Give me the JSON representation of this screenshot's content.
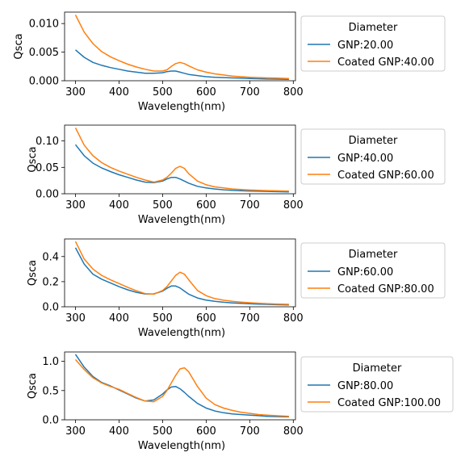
{
  "colors": {
    "series_a": "#1f77b4",
    "series_b": "#ff7f0e",
    "axis": "#000000",
    "background": "#ffffff"
  },
  "chart_data": [
    {
      "type": "line",
      "xlabel": "Wavelength(nm)",
      "ylabel": "Qsca",
      "xlim": [
        275,
        805
      ],
      "ylim": [
        0,
        0.012
      ],
      "x_ticks": [
        300,
        400,
        500,
        600,
        700,
        800
      ],
      "x_tick_labels": [
        "300",
        "400",
        "500",
        "600",
        "700",
        "800"
      ],
      "y_ticks": [
        0,
        0.005,
        0.01
      ],
      "y_tick_labels": [
        "0.000",
        "0.005",
        "0.010"
      ],
      "grid": false,
      "legend": {
        "title": "Diameter",
        "placement": "outside-right"
      },
      "x": [
        300,
        320,
        340,
        360,
        380,
        400,
        420,
        440,
        460,
        480,
        500,
        510,
        520,
        530,
        540,
        550,
        560,
        580,
        600,
        620,
        640,
        660,
        680,
        700,
        720,
        740,
        760,
        790
      ],
      "series": [
        {
          "name": "GNP:20.00",
          "values": [
            0.0054,
            0.0041,
            0.0032,
            0.0027,
            0.0023,
            0.002,
            0.0017,
            0.0015,
            0.0013,
            0.0013,
            0.0014,
            0.0016,
            0.0017,
            0.0017,
            0.0015,
            0.0013,
            0.0011,
            0.0009,
            0.0007,
            0.0006,
            0.00055,
            0.0005,
            0.00045,
            0.0004,
            0.00035,
            0.0003,
            0.00028,
            0.00025
          ]
        },
        {
          "name": "Coated GNP:40.00",
          "values": [
            0.0115,
            0.0085,
            0.0065,
            0.0051,
            0.0042,
            0.0035,
            0.0029,
            0.0024,
            0.002,
            0.0017,
            0.0017,
            0.0019,
            0.0025,
            0.003,
            0.0032,
            0.003,
            0.0026,
            0.0019,
            0.0015,
            0.0012,
            0.001,
            0.0008,
            0.0007,
            0.0006,
            0.00055,
            0.0005,
            0.00045,
            0.0004
          ]
        }
      ]
    },
    {
      "type": "line",
      "xlabel": "Wavelength(nm)",
      "ylabel": "Qsca",
      "xlim": [
        275,
        805
      ],
      "ylim": [
        0,
        0.13
      ],
      "x_ticks": [
        300,
        400,
        500,
        600,
        700,
        800
      ],
      "x_tick_labels": [
        "300",
        "400",
        "500",
        "600",
        "700",
        "800"
      ],
      "y_ticks": [
        0,
        0.05,
        0.1
      ],
      "y_tick_labels": [
        "0.00",
        "0.05",
        "0.10"
      ],
      "grid": false,
      "legend": {
        "title": "Diameter",
        "placement": "outside-right"
      },
      "x": [
        300,
        320,
        340,
        360,
        380,
        400,
        420,
        440,
        460,
        480,
        500,
        510,
        520,
        530,
        540,
        550,
        560,
        580,
        600,
        620,
        640,
        660,
        680,
        700,
        720,
        740,
        760,
        790
      ],
      "series": [
        {
          "name": "GNP:40.00",
          "values": [
            0.093,
            0.072,
            0.058,
            0.049,
            0.042,
            0.036,
            0.031,
            0.026,
            0.022,
            0.021,
            0.024,
            0.028,
            0.031,
            0.031,
            0.028,
            0.024,
            0.02,
            0.014,
            0.011,
            0.009,
            0.0075,
            0.0065,
            0.0058,
            0.0052,
            0.0048,
            0.0044,
            0.004,
            0.0035
          ]
        },
        {
          "name": "Coated GNP:60.00",
          "values": [
            0.125,
            0.092,
            0.072,
            0.059,
            0.05,
            0.043,
            0.037,
            0.031,
            0.026,
            0.022,
            0.026,
            0.031,
            0.039,
            0.048,
            0.052,
            0.048,
            0.038,
            0.024,
            0.017,
            0.013,
            0.011,
            0.009,
            0.008,
            0.007,
            0.0065,
            0.006,
            0.0055,
            0.005
          ]
        }
      ]
    },
    {
      "type": "line",
      "xlabel": "Wavelength(nm)",
      "ylabel": "Qsca",
      "xlim": [
        275,
        805
      ],
      "ylim": [
        0,
        0.54
      ],
      "x_ticks": [
        300,
        400,
        500,
        600,
        700,
        800
      ],
      "x_tick_labels": [
        "300",
        "400",
        "500",
        "600",
        "700",
        "800"
      ],
      "y_ticks": [
        0,
        0.2,
        0.4
      ],
      "y_tick_labels": [
        "0.0",
        "0.2",
        "0.4"
      ],
      "grid": false,
      "legend": {
        "title": "Diameter",
        "placement": "outside-right"
      },
      "x": [
        300,
        320,
        340,
        360,
        380,
        400,
        420,
        440,
        460,
        480,
        500,
        510,
        520,
        530,
        540,
        550,
        560,
        580,
        600,
        620,
        640,
        660,
        680,
        700,
        720,
        740,
        760,
        790
      ],
      "series": [
        {
          "name": "GNP:60.00",
          "values": [
            0.47,
            0.34,
            0.26,
            0.22,
            0.19,
            0.16,
            0.135,
            0.115,
            0.102,
            0.103,
            0.125,
            0.147,
            0.165,
            0.165,
            0.15,
            0.125,
            0.1,
            0.07,
            0.053,
            0.043,
            0.036,
            0.031,
            0.027,
            0.024,
            0.021,
            0.019,
            0.017,
            0.015
          ]
        },
        {
          "name": "Coated GNP:80.00",
          "values": [
            0.52,
            0.38,
            0.3,
            0.25,
            0.215,
            0.185,
            0.155,
            0.127,
            0.105,
            0.1,
            0.13,
            0.16,
            0.205,
            0.25,
            0.275,
            0.26,
            0.215,
            0.13,
            0.088,
            0.065,
            0.052,
            0.043,
            0.037,
            0.032,
            0.028,
            0.025,
            0.022,
            0.019
          ]
        }
      ]
    },
    {
      "type": "line",
      "xlabel": "Wavelength(nm)",
      "ylabel": "Qsca",
      "xlim": [
        275,
        805
      ],
      "ylim": [
        0,
        1.16
      ],
      "x_ticks": [
        300,
        400,
        500,
        600,
        700,
        800
      ],
      "x_tick_labels": [
        "300",
        "400",
        "500",
        "600",
        "700",
        "800"
      ],
      "y_ticks": [
        0,
        0.5,
        1.0
      ],
      "y_tick_labels": [
        "0.0",
        "0.5",
        "1.0"
      ],
      "grid": false,
      "legend": {
        "title": "Diameter",
        "placement": "outside-right"
      },
      "x": [
        300,
        320,
        340,
        360,
        380,
        400,
        420,
        440,
        460,
        480,
        500,
        510,
        520,
        530,
        540,
        550,
        560,
        580,
        600,
        620,
        640,
        660,
        680,
        700,
        720,
        740,
        760,
        790
      ],
      "series": [
        {
          "name": "GNP:80.00",
          "values": [
            1.12,
            0.9,
            0.74,
            0.64,
            0.58,
            0.51,
            0.44,
            0.37,
            0.32,
            0.34,
            0.44,
            0.51,
            0.56,
            0.57,
            0.53,
            0.47,
            0.4,
            0.28,
            0.2,
            0.15,
            0.12,
            0.1,
            0.09,
            0.08,
            0.07,
            0.06,
            0.055,
            0.05
          ]
        },
        {
          "name": "Coated GNP:100.00",
          "values": [
            1.03,
            0.86,
            0.72,
            0.63,
            0.57,
            0.52,
            0.45,
            0.38,
            0.32,
            0.31,
            0.4,
            0.5,
            0.63,
            0.76,
            0.87,
            0.89,
            0.82,
            0.57,
            0.37,
            0.26,
            0.2,
            0.16,
            0.13,
            0.11,
            0.09,
            0.08,
            0.07,
            0.06
          ]
        }
      ]
    }
  ]
}
